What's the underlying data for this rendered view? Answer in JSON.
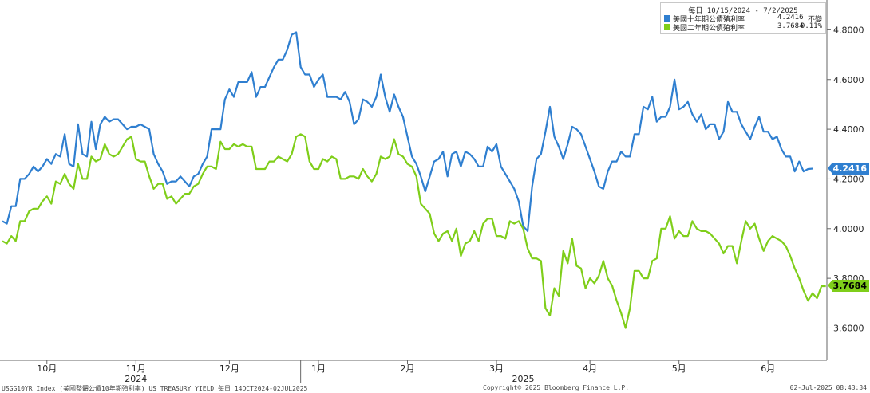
{
  "chart_data": {
    "type": "line",
    "legend": {
      "period": "每日 10/15/2024 - 7/2/2025",
      "placement": "top-right"
    },
    "y_ticks": [
      "3.6000",
      "3.8000",
      "4.0000",
      "4.2000",
      "4.4000",
      "4.6000",
      "4.8000"
    ],
    "ylim": [
      3.47,
      4.92
    ],
    "months": [
      {
        "label": "10月",
        "pos": 10
      },
      {
        "label": "11月",
        "pos": 30
      },
      {
        "label": "12月",
        "pos": 51
      },
      {
        "label": "1月",
        "pos": 71
      },
      {
        "label": "2月",
        "pos": 91
      },
      {
        "label": "3月",
        "pos": 111
      },
      {
        "label": "4月",
        "pos": 132
      },
      {
        "label": "5月",
        "pos": 152
      },
      {
        "label": "6月",
        "pos": 172
      }
    ],
    "years": [
      {
        "label": "2024",
        "pos": 30
      },
      {
        "label": "2025",
        "pos": 117
      }
    ],
    "series": [
      {
        "name": "美國十年期公債殖利率",
        "color": "#2f7fd0",
        "last_value": "4.2416",
        "change": "不變",
        "values": [
          4.03,
          4.02,
          4.09,
          4.09,
          4.2,
          4.2,
          4.22,
          4.25,
          4.23,
          4.25,
          4.28,
          4.26,
          4.3,
          4.29,
          4.38,
          4.26,
          4.25,
          4.42,
          4.3,
          4.29,
          4.43,
          4.32,
          4.42,
          4.45,
          4.43,
          4.44,
          4.44,
          4.42,
          4.4,
          4.41,
          4.41,
          4.42,
          4.41,
          4.4,
          4.3,
          4.26,
          4.23,
          4.18,
          4.19,
          4.19,
          4.21,
          4.19,
          4.17,
          4.21,
          4.22,
          4.26,
          4.29,
          4.4,
          4.4,
          4.4,
          4.52,
          4.56,
          4.53,
          4.59,
          4.59,
          4.59,
          4.63,
          4.53,
          4.57,
          4.57,
          4.61,
          4.65,
          4.68,
          4.68,
          4.72,
          4.78,
          4.79,
          4.65,
          4.62,
          4.62,
          4.57,
          4.6,
          4.62,
          4.53,
          4.53,
          4.53,
          4.52,
          4.55,
          4.51,
          4.42,
          4.44,
          4.52,
          4.51,
          4.49,
          4.53,
          4.62,
          4.53,
          4.47,
          4.54,
          4.49,
          4.45,
          4.37,
          4.29,
          4.26,
          4.21,
          4.15,
          4.21,
          4.27,
          4.28,
          4.31,
          4.21,
          4.3,
          4.31,
          4.25,
          4.31,
          4.3,
          4.28,
          4.25,
          4.25,
          4.33,
          4.31,
          4.34,
          4.25,
          4.22,
          4.19,
          4.16,
          4.11,
          4.01,
          3.99,
          4.17,
          4.28,
          4.3,
          4.39,
          4.49,
          4.37,
          4.33,
          4.28,
          4.34,
          4.41,
          4.4,
          4.38,
          4.33,
          4.28,
          4.23,
          4.17,
          4.16,
          4.23,
          4.27,
          4.27,
          4.31,
          4.29,
          4.29,
          4.38,
          4.38,
          4.49,
          4.48,
          4.53,
          4.43,
          4.45,
          4.45,
          4.49,
          4.6,
          4.48,
          4.49,
          4.51,
          4.46,
          4.43,
          4.46,
          4.4,
          4.42,
          4.42,
          4.36,
          4.39,
          4.51,
          4.47,
          4.47,
          4.42,
          4.39,
          4.36,
          4.41,
          4.45,
          4.39,
          4.39,
          4.36,
          4.37,
          4.32,
          4.29,
          4.29,
          4.23,
          4.27,
          4.23,
          4.24,
          4.2416
        ]
      },
      {
        "name": "美國二年期公債殖利率",
        "color": "#7fce1a",
        "last_value": "3.7684",
        "change": "-0.11%",
        "values": [
          3.95,
          3.94,
          3.97,
          3.95,
          4.03,
          4.03,
          4.07,
          4.08,
          4.08,
          4.11,
          4.13,
          4.1,
          4.19,
          4.18,
          4.22,
          4.18,
          4.16,
          4.26,
          4.2,
          4.2,
          4.29,
          4.27,
          4.28,
          4.34,
          4.3,
          4.29,
          4.3,
          4.33,
          4.36,
          4.37,
          4.28,
          4.27,
          4.27,
          4.21,
          4.16,
          4.18,
          4.18,
          4.12,
          4.13,
          4.1,
          4.12,
          4.14,
          4.14,
          4.17,
          4.18,
          4.22,
          4.25,
          4.25,
          4.24,
          4.35,
          4.32,
          4.32,
          4.34,
          4.33,
          4.34,
          4.33,
          4.33,
          4.24,
          4.24,
          4.24,
          4.27,
          4.27,
          4.29,
          4.28,
          4.27,
          4.3,
          4.37,
          4.38,
          4.37,
          4.27,
          4.24,
          4.24,
          4.28,
          4.27,
          4.29,
          4.28,
          4.2,
          4.2,
          4.21,
          4.21,
          4.2,
          4.24,
          4.21,
          4.19,
          4.22,
          4.29,
          4.28,
          4.29,
          4.36,
          4.3,
          4.29,
          4.26,
          4.25,
          4.21,
          4.1,
          4.08,
          4.06,
          3.98,
          3.95,
          3.98,
          3.99,
          3.95,
          4.0,
          3.89,
          3.94,
          3.95,
          3.99,
          3.95,
          4.02,
          4.04,
          4.04,
          3.97,
          3.97,
          3.96,
          4.03,
          4.02,
          4.03,
          4.0,
          3.92,
          3.88,
          3.88,
          3.87,
          3.68,
          3.65,
          3.76,
          3.73,
          3.91,
          3.86,
          3.96,
          3.85,
          3.84,
          3.76,
          3.8,
          3.78,
          3.81,
          3.87,
          3.8,
          3.77,
          3.71,
          3.66,
          3.6,
          3.68,
          3.83,
          3.83,
          3.8,
          3.8,
          3.87,
          3.88,
          4.0,
          4.0,
          4.05,
          3.96,
          3.99,
          3.97,
          3.97,
          4.03,
          4.0,
          3.99,
          3.99,
          3.98,
          3.96,
          3.94,
          3.9,
          3.93,
          3.93,
          3.86,
          3.95,
          4.03,
          4.0,
          4.02,
          3.96,
          3.91,
          3.95,
          3.97,
          3.96,
          3.95,
          3.93,
          3.89,
          3.84,
          3.8,
          3.75,
          3.71,
          3.74,
          3.72,
          3.7684,
          3.7684
        ]
      }
    ]
  },
  "footer": {
    "left": "USGG10YR Index (美國整體公債10年期殖利率) US TREASURY YIELD  每日 14OCT2024-02JUL2025",
    "center": "Copyright© 2025 Bloomberg Finance L.P.",
    "right": "02-Jul-2025 08:43:34"
  }
}
